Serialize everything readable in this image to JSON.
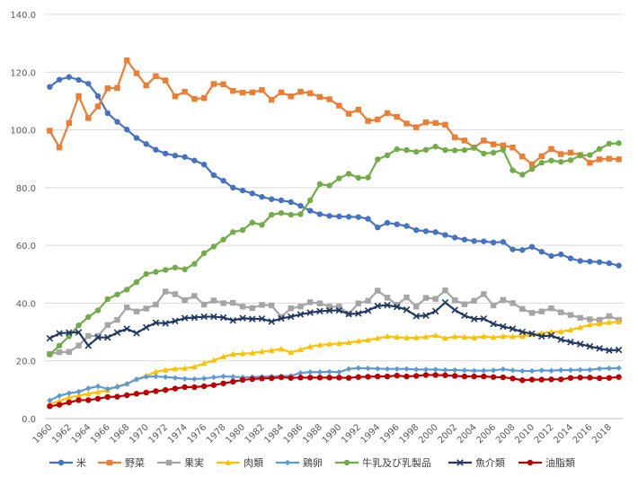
{
  "chart_data": {
    "type": "line",
    "title": "",
    "xlabel": "",
    "ylabel": "",
    "ylim": [
      0,
      140
    ],
    "yticks": [
      "0.0",
      "20.0",
      "40.0",
      "60.0",
      "80.0",
      "100.0",
      "120.0",
      "140.0"
    ],
    "ytick_values": [
      0,
      20,
      40,
      60,
      80,
      100,
      120,
      140
    ],
    "x_start": 1960,
    "x_end": 2019,
    "xticks": [
      "1960",
      "1962",
      "1964",
      "1966",
      "1968",
      "1970",
      "1972",
      "1974",
      "1976",
      "1978",
      "1980",
      "1982",
      "1984",
      "1986",
      "1988",
      "1990",
      "1992",
      "1994",
      "1996",
      "1998",
      "2000",
      "2002",
      "2004",
      "2006",
      "2008",
      "2010",
      "2012",
      "2014",
      "2016",
      "2018"
    ],
    "grid": true,
    "legend_position": "bottom",
    "series": [
      {
        "name": "米",
        "color": "#4472C4",
        "marker": "circle",
        "values": [
          114.9,
          117.4,
          118.3,
          117.3,
          116.0,
          111.7,
          105.8,
          102.8,
          100.1,
          97.2,
          95.1,
          93.1,
          91.8,
          91.1,
          90.6,
          89.4,
          88.0,
          84.3,
          82.4,
          80.0,
          79.0,
          78.0,
          76.8,
          76.0,
          75.6,
          75.0,
          73.7,
          72.0,
          70.8,
          70.2,
          70.0,
          69.9,
          69.8,
          69.2,
          66.2,
          67.8,
          67.3,
          66.7,
          65.3,
          64.9,
          64.6,
          63.6,
          62.7,
          62.0,
          61.5,
          61.4,
          61.0,
          61.2,
          58.6,
          58.4,
          59.5,
          57.8,
          56.3,
          56.9,
          55.5,
          54.6,
          54.4,
          54.2,
          53.8,
          53.0
        ]
      },
      {
        "name": "野菜",
        "color": "#ED7D31",
        "marker": "square",
        "values": [
          99.7,
          93.9,
          102.4,
          111.7,
          104.1,
          108.1,
          114.4,
          114.5,
          124.1,
          119.6,
          115.4,
          118.6,
          117.1,
          111.6,
          113.2,
          110.7,
          111.0,
          115.9,
          115.8,
          113.5,
          112.9,
          113.0,
          113.8,
          110.4,
          113.0,
          111.6,
          113.2,
          112.7,
          111.4,
          110.6,
          108.4,
          105.6,
          107.0,
          103.1,
          103.6,
          105.8,
          104.5,
          102.2,
          100.9,
          102.6,
          102.4,
          101.8,
          97.4,
          96.3,
          93.9,
          96.3,
          95.0,
          94.6,
          93.9,
          90.8,
          88.1,
          90.9,
          93.4,
          91.6,
          92.1,
          91.3,
          88.6,
          89.8,
          90.0,
          89.8
        ]
      },
      {
        "name": "果実",
        "color": "#A5A5A5",
        "marker": "square",
        "values": [
          22.4,
          23.0,
          23.1,
          25.3,
          28.6,
          28.6,
          32.4,
          34.2,
          38.5,
          37.1,
          38.1,
          39.5,
          44.0,
          43.1,
          41.0,
          42.5,
          39.5,
          40.9,
          40.0,
          40.1,
          38.8,
          38.3,
          39.4,
          39.2,
          35.2,
          38.2,
          38.8,
          40.3,
          39.9,
          38.8,
          38.8,
          36.3,
          39.9,
          40.8,
          44.3,
          41.9,
          39.4,
          42.0,
          38.8,
          41.8,
          41.5,
          44.4,
          41.0,
          39.6,
          40.8,
          43.1,
          39.2,
          41.1,
          40.0,
          38.0,
          36.6,
          37.1,
          38.2,
          36.8,
          35.9,
          34.9,
          34.4,
          34.2,
          35.5,
          34.2
        ]
      },
      {
        "name": "肉類",
        "color": "#FFC000",
        "marker": "triangle",
        "values": [
          5.2,
          6.0,
          7.3,
          8.0,
          8.6,
          9.2,
          9.8,
          11.2,
          12.1,
          13.7,
          14.8,
          16.2,
          16.8,
          17.2,
          17.4,
          17.9,
          19.1,
          20.2,
          21.4,
          22.3,
          22.5,
          22.7,
          23.2,
          23.6,
          24.1,
          22.9,
          23.9,
          24.9,
          25.5,
          25.8,
          26.0,
          26.3,
          26.8,
          27.2,
          27.8,
          28.5,
          28.2,
          28.0,
          28.0,
          28.3,
          28.8,
          27.8,
          28.4,
          28.2,
          28.0,
          28.5,
          28.1,
          28.5,
          28.4,
          28.5,
          29.1,
          29.6,
          30.0,
          30.1,
          30.7,
          31.6,
          32.5,
          32.8,
          33.3,
          33.5
        ]
      },
      {
        "name": "鶏卵",
        "color": "#5B9BD5",
        "marker": "diamond",
        "values": [
          6.3,
          7.9,
          8.8,
          9.3,
          10.5,
          11.2,
          10.3,
          11.0,
          12.0,
          13.6,
          14.5,
          14.6,
          14.4,
          14.1,
          13.8,
          13.7,
          13.9,
          14.3,
          14.6,
          14.5,
          14.3,
          14.4,
          14.5,
          14.6,
          14.7,
          14.8,
          15.8,
          16.1,
          16.1,
          16.2,
          16.1,
          17.2,
          17.5,
          17.4,
          17.3,
          17.2,
          17.2,
          17.2,
          17.0,
          17.0,
          17.0,
          16.8,
          16.8,
          16.7,
          16.6,
          16.6,
          16.7,
          17.1,
          16.7,
          16.5,
          16.5,
          16.7,
          16.6,
          16.8,
          16.8,
          16.9,
          16.9,
          17.3,
          17.4,
          17.5
        ]
      },
      {
        "name": "牛乳及び乳製品",
        "color": "#70AD47",
        "marker": "circle",
        "values": [
          22.2,
          25.3,
          28.5,
          32.3,
          35.2,
          37.5,
          41.4,
          43.0,
          44.7,
          47.3,
          50.1,
          50.8,
          51.5,
          52.3,
          51.7,
          53.6,
          57.3,
          59.6,
          62.0,
          64.6,
          65.3,
          67.9,
          67.1,
          70.6,
          71.2,
          70.6,
          70.8,
          75.6,
          81.2,
          80.7,
          83.2,
          84.8,
          83.4,
          83.5,
          89.8,
          91.2,
          93.3,
          93.0,
          92.4,
          93.1,
          94.2,
          93.0,
          92.9,
          93.0,
          93.8,
          91.8,
          92.1,
          93.1,
          86.0,
          84.5,
          86.4,
          88.6,
          89.4,
          88.9,
          89.5,
          91.1,
          91.3,
          93.4,
          95.2,
          95.4
        ]
      },
      {
        "name": "魚介類",
        "color": "#1F3864",
        "marker": "x",
        "values": [
          27.8,
          29.5,
          29.8,
          29.9,
          25.3,
          28.1,
          28.1,
          29.8,
          31.1,
          29.6,
          31.6,
          33.2,
          33.0,
          33.8,
          34.8,
          35.0,
          35.3,
          35.3,
          35.0,
          34.0,
          34.8,
          34.5,
          34.6,
          33.6,
          34.7,
          35.3,
          36.1,
          36.7,
          37.2,
          37.4,
          37.5,
          36.2,
          36.4,
          37.4,
          39.0,
          39.3,
          38.7,
          37.7,
          35.5,
          35.7,
          37.2,
          40.2,
          37.6,
          35.7,
          34.5,
          34.6,
          32.8,
          31.9,
          31.1,
          30.0,
          29.4,
          28.5,
          28.8,
          27.4,
          26.5,
          25.8,
          25.0,
          24.3,
          23.6,
          23.8
        ]
      },
      {
        "name": "油脂類",
        "color": "#C00000",
        "marker": "circle",
        "values": [
          4.3,
          4.8,
          5.6,
          6.4,
          6.4,
          6.9,
          7.5,
          7.6,
          8.1,
          8.6,
          9.0,
          9.5,
          9.9,
          10.4,
          10.9,
          10.9,
          11.2,
          11.6,
          12.2,
          12.8,
          13.4,
          13.7,
          13.9,
          14.0,
          14.3,
          14.1,
          14.2,
          14.2,
          14.2,
          14.2,
          14.2,
          14.1,
          14.4,
          14.5,
          14.6,
          14.6,
          14.9,
          14.6,
          14.8,
          15.1,
          15.1,
          15.0,
          14.8,
          14.6,
          14.6,
          14.6,
          14.4,
          14.3,
          13.9,
          13.3,
          13.5,
          13.5,
          13.6,
          13.6,
          14.1,
          14.2,
          14.2,
          14.0,
          14.1,
          14.4
        ]
      }
    ]
  }
}
